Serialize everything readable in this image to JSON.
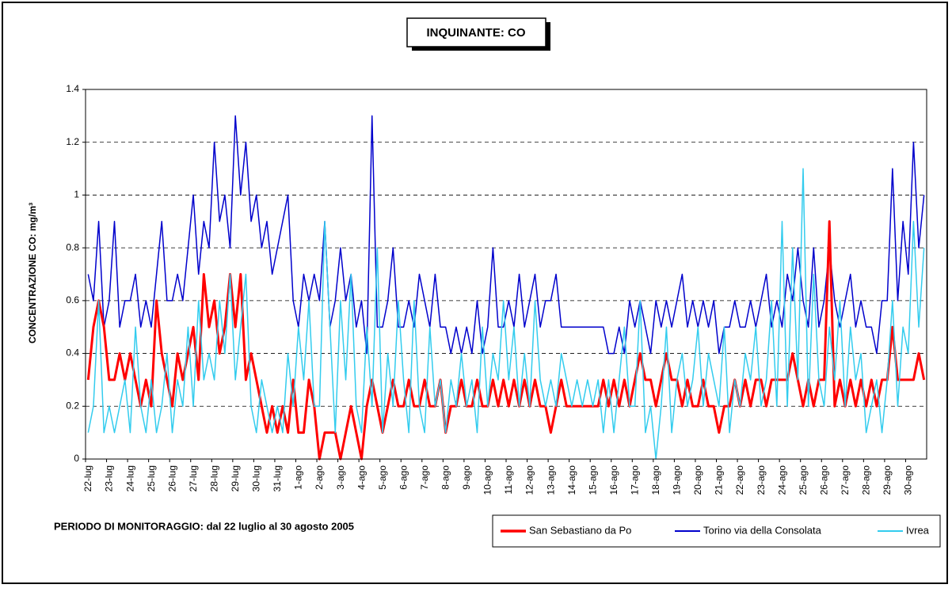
{
  "chart_data": {
    "type": "line",
    "title": "INQUINANTE: CO",
    "y_label": "CONCENTRAZIONE CO: mg/m³",
    "annotation": "PERIODO DI MONITORAGGIO: dal 22 luglio al 30 agosto 2005",
    "categories": [
      "22-lug",
      null,
      null,
      null,
      "23-lug",
      null,
      null,
      null,
      "24-lug",
      null,
      null,
      null,
      "25-lug",
      null,
      null,
      null,
      "26-lug",
      null,
      null,
      null,
      "27-lug",
      null,
      null,
      null,
      "28-lug",
      null,
      null,
      null,
      "29-lug",
      null,
      null,
      null,
      "30-lug",
      null,
      null,
      null,
      "31-lug",
      null,
      null,
      null,
      "1-ago",
      null,
      null,
      null,
      "2-ago",
      null,
      null,
      null,
      "3-ago",
      null,
      null,
      null,
      "4-ago",
      null,
      null,
      null,
      "5-ago",
      null,
      null,
      null,
      "6-ago",
      null,
      null,
      null,
      "7-ago",
      null,
      null,
      null,
      "8-ago",
      null,
      null,
      null,
      "9-ago",
      null,
      null,
      null,
      "10-ago",
      null,
      null,
      null,
      "11-ago",
      null,
      null,
      null,
      "12-ago",
      null,
      null,
      null,
      "13-ago",
      null,
      null,
      null,
      "14-ago",
      null,
      null,
      null,
      "15-ago",
      null,
      null,
      null,
      "16-ago",
      null,
      null,
      null,
      "17-ago",
      null,
      null,
      null,
      "18-ago",
      null,
      null,
      null,
      "19-ago",
      null,
      null,
      null,
      "20-ago",
      null,
      null,
      null,
      "21-ago",
      null,
      null,
      null,
      "22-ago",
      null,
      null,
      null,
      "23-ago",
      null,
      null,
      null,
      "24-ago",
      null,
      null,
      null,
      "25-ago",
      null,
      null,
      null,
      "26-ago",
      null,
      null,
      null,
      "27-ago",
      null,
      null,
      null,
      "28-ago",
      null,
      null,
      null,
      "29-ago",
      null,
      null,
      null,
      "30-ago",
      null,
      null,
      null
    ],
    "series": [
      {
        "name": "San Sebastiano da Po",
        "color": "#ff0000",
        "width": 3,
        "values": [
          0.3,
          0.5,
          0.6,
          0.5,
          0.3,
          0.3,
          0.4,
          0.3,
          0.4,
          0.3,
          0.2,
          0.3,
          0.2,
          0.6,
          0.4,
          0.3,
          0.2,
          0.4,
          0.3,
          0.4,
          0.5,
          0.3,
          0.7,
          0.5,
          0.6,
          0.4,
          0.5,
          0.7,
          0.5,
          0.7,
          0.3,
          0.4,
          0.3,
          0.2,
          0.1,
          0.2,
          0.1,
          0.2,
          0.1,
          0.3,
          0.1,
          0.1,
          0.3,
          0.2,
          0.0,
          0.1,
          0.1,
          0.1,
          0.0,
          0.1,
          0.2,
          0.1,
          0.0,
          0.2,
          0.3,
          0.2,
          0.1,
          0.2,
          0.3,
          0.2,
          0.2,
          0.3,
          0.2,
          0.2,
          0.3,
          0.2,
          0.2,
          0.3,
          0.1,
          0.2,
          0.2,
          0.3,
          0.2,
          0.2,
          0.3,
          0.2,
          0.2,
          0.3,
          0.2,
          0.3,
          0.2,
          0.3,
          0.2,
          0.3,
          0.2,
          0.3,
          0.2,
          0.2,
          0.1,
          0.2,
          0.3,
          0.2,
          0.2,
          0.2,
          0.2,
          0.2,
          0.2,
          0.2,
          0.3,
          0.2,
          0.3,
          0.2,
          0.3,
          0.2,
          0.3,
          0.4,
          0.3,
          0.3,
          0.2,
          0.3,
          0.4,
          0.3,
          0.3,
          0.2,
          0.3,
          0.2,
          0.2,
          0.3,
          0.2,
          0.2,
          0.1,
          0.2,
          0.2,
          0.3,
          0.2,
          0.3,
          0.2,
          0.3,
          0.3,
          0.2,
          0.3,
          0.3,
          0.3,
          0.3,
          0.4,
          0.3,
          0.2,
          0.3,
          0.2,
          0.3,
          0.3,
          0.9,
          0.2,
          0.3,
          0.2,
          0.3,
          0.2,
          0.3,
          0.2,
          0.3,
          0.2,
          0.3,
          0.3,
          0.5,
          0.3,
          0.3,
          0.3,
          0.3,
          0.4,
          0.3
        ]
      },
      {
        "name": "Torino via della Consolata",
        "color": "#0000cc",
        "width": 1.5,
        "values": [
          0.7,
          0.6,
          0.9,
          0.5,
          0.6,
          0.9,
          0.5,
          0.6,
          0.6,
          0.7,
          0.5,
          0.6,
          0.5,
          0.7,
          0.9,
          0.6,
          0.6,
          0.7,
          0.6,
          0.8,
          1.0,
          0.7,
          0.9,
          0.8,
          1.2,
          0.9,
          1.0,
          0.8,
          1.3,
          1.0,
          1.2,
          0.9,
          1.0,
          0.8,
          0.9,
          0.7,
          0.8,
          0.9,
          1.0,
          0.6,
          0.5,
          0.7,
          0.6,
          0.7,
          0.6,
          0.9,
          0.5,
          0.6,
          0.8,
          0.6,
          0.7,
          0.5,
          0.6,
          0.4,
          1.3,
          0.5,
          0.5,
          0.6,
          0.8,
          0.5,
          0.5,
          0.6,
          0.5,
          0.7,
          0.6,
          0.5,
          0.7,
          0.5,
          0.5,
          0.4,
          0.5,
          0.4,
          0.5,
          0.4,
          0.6,
          0.4,
          0.5,
          0.8,
          0.5,
          0.5,
          0.6,
          0.5,
          0.7,
          0.5,
          0.6,
          0.7,
          0.5,
          0.6,
          0.6,
          0.7,
          0.5,
          0.5,
          0.5,
          0.5,
          0.5,
          0.5,
          0.5,
          0.5,
          0.5,
          0.4,
          0.4,
          0.5,
          0.4,
          0.6,
          0.5,
          0.6,
          0.5,
          0.4,
          0.6,
          0.5,
          0.6,
          0.5,
          0.6,
          0.7,
          0.5,
          0.6,
          0.5,
          0.6,
          0.5,
          0.6,
          0.4,
          0.5,
          0.5,
          0.6,
          0.5,
          0.5,
          0.6,
          0.5,
          0.6,
          0.7,
          0.5,
          0.6,
          0.5,
          0.7,
          0.6,
          0.8,
          0.6,
          0.5,
          0.8,
          0.5,
          0.6,
          0.8,
          0.6,
          0.5,
          0.6,
          0.7,
          0.5,
          0.6,
          0.5,
          0.5,
          0.4,
          0.6,
          0.6,
          1.1,
          0.6,
          0.9,
          0.7,
          1.2,
          0.8,
          1.0
        ]
      },
      {
        "name": "Ivrea",
        "color": "#33ccee",
        "width": 1.5,
        "values": [
          0.1,
          0.2,
          0.6,
          0.1,
          0.2,
          0.1,
          0.2,
          0.3,
          0.1,
          0.5,
          0.2,
          0.1,
          0.3,
          0.1,
          0.2,
          0.4,
          0.1,
          0.3,
          0.2,
          0.5,
          0.2,
          0.6,
          0.3,
          0.4,
          0.3,
          0.6,
          0.4,
          0.7,
          0.3,
          0.5,
          0.7,
          0.2,
          0.1,
          0.3,
          0.2,
          0.1,
          0.2,
          0.1,
          0.4,
          0.2,
          0.5,
          0.3,
          0.6,
          0.2,
          0.2,
          0.9,
          0.5,
          0.1,
          0.6,
          0.3,
          0.7,
          0.2,
          0.1,
          0.5,
          0.2,
          0.8,
          0.1,
          0.4,
          0.2,
          0.6,
          0.3,
          0.1,
          0.6,
          0.2,
          0.1,
          0.5,
          0.2,
          0.3,
          0.1,
          0.3,
          0.2,
          0.4,
          0.2,
          0.3,
          0.1,
          0.5,
          0.2,
          0.4,
          0.3,
          0.6,
          0.3,
          0.5,
          0.2,
          0.4,
          0.2,
          0.6,
          0.3,
          0.2,
          0.3,
          0.2,
          0.4,
          0.3,
          0.2,
          0.3,
          0.2,
          0.3,
          0.2,
          0.3,
          0.1,
          0.3,
          0.1,
          0.3,
          0.5,
          0.2,
          0.2,
          0.6,
          0.1,
          0.2,
          0.0,
          0.2,
          0.5,
          0.1,
          0.3,
          0.4,
          0.2,
          0.3,
          0.5,
          0.2,
          0.4,
          0.3,
          0.2,
          0.5,
          0.1,
          0.3,
          0.2,
          0.4,
          0.3,
          0.5,
          0.2,
          0.3,
          0.6,
          0.2,
          0.9,
          0.2,
          0.8,
          0.3,
          1.1,
          0.2,
          0.7,
          0.3,
          0.2,
          0.5,
          0.3,
          0.6,
          0.2,
          0.5,
          0.3,
          0.4,
          0.1,
          0.2,
          0.3,
          0.1,
          0.3,
          0.6,
          0.2,
          0.5,
          0.4,
          0.9,
          0.5,
          0.8
        ]
      }
    ],
    "ylim": [
      0,
      1.4
    ],
    "yticks": [
      0,
      0.2,
      0.4,
      0.6,
      0.8,
      1,
      1.2,
      1.4
    ],
    "grid": true
  }
}
